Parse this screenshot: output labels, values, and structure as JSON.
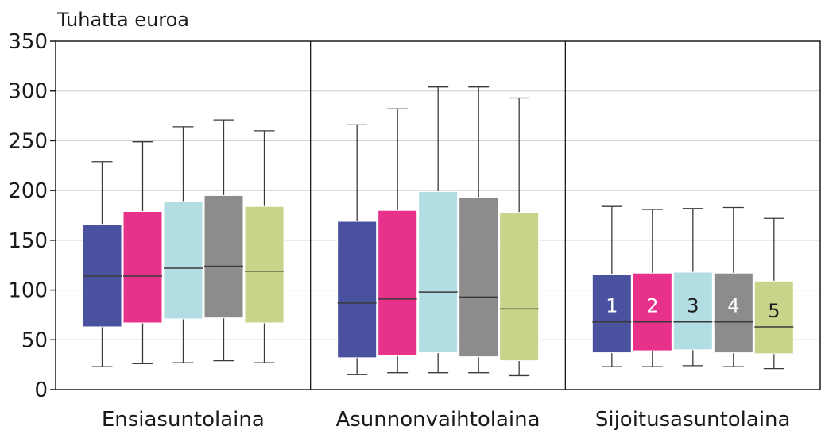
{
  "chart_data": {
    "type": "boxplot",
    "ylabel": "Tuhatta euroa",
    "ylim": [
      0,
      350
    ],
    "yticks": [
      0,
      50,
      100,
      150,
      200,
      250,
      300,
      350
    ],
    "grid": true,
    "categories": [
      "Ensiasuntolaina",
      "Asunnonvaihtolaina",
      "Sijoitusasuntolaina"
    ],
    "series_labels": [
      "1",
      "2",
      "3",
      "4",
      "5"
    ],
    "label_group": 2,
    "colors": [
      "#4a52a0",
      "#e8318a",
      "#b2dde2",
      "#8c8c8c",
      "#c8d48a"
    ],
    "label_colors": [
      "#ffffff",
      "#ffffff",
      "#1a1a1a",
      "#ffffff",
      "#1a1a1a"
    ],
    "groups": [
      {
        "name": "Ensiasuntolaina",
        "boxes": [
          {
            "min": 23,
            "q1": 63,
            "median": 114,
            "q3": 166,
            "max": 229
          },
          {
            "min": 26,
            "q1": 67,
            "median": 114,
            "q3": 179,
            "max": 249
          },
          {
            "min": 27,
            "q1": 71,
            "median": 122,
            "q3": 189,
            "max": 264
          },
          {
            "min": 29,
            "q1": 72,
            "median": 124,
            "q3": 195,
            "max": 271
          },
          {
            "min": 27,
            "q1": 67,
            "median": 119,
            "q3": 184,
            "max": 260
          }
        ]
      },
      {
        "name": "Asunnonvaihtolaina",
        "boxes": [
          {
            "min": 15,
            "q1": 32,
            "median": 87,
            "q3": 169,
            "max": 266
          },
          {
            "min": 17,
            "q1": 34,
            "median": 91,
            "q3": 180,
            "max": 282
          },
          {
            "min": 17,
            "q1": 37,
            "median": 98,
            "q3": 199,
            "max": 304
          },
          {
            "min": 17,
            "q1": 33,
            "median": 93,
            "q3": 193,
            "max": 304
          },
          {
            "min": 14,
            "q1": 29,
            "median": 81,
            "q3": 178,
            "max": 293
          }
        ]
      },
      {
        "name": "Sijoitusasuntolaina",
        "boxes": [
          {
            "min": 23,
            "q1": 37,
            "median": 68,
            "q3": 116,
            "max": 184
          },
          {
            "min": 23,
            "q1": 39,
            "median": 68,
            "q3": 117,
            "max": 181
          },
          {
            "min": 24,
            "q1": 40,
            "median": 68,
            "q3": 118,
            "max": 182
          },
          {
            "min": 23,
            "q1": 37,
            "median": 68,
            "q3": 117,
            "max": 183
          },
          {
            "min": 21,
            "q1": 36,
            "median": 63,
            "q3": 109,
            "max": 172
          }
        ]
      }
    ]
  }
}
